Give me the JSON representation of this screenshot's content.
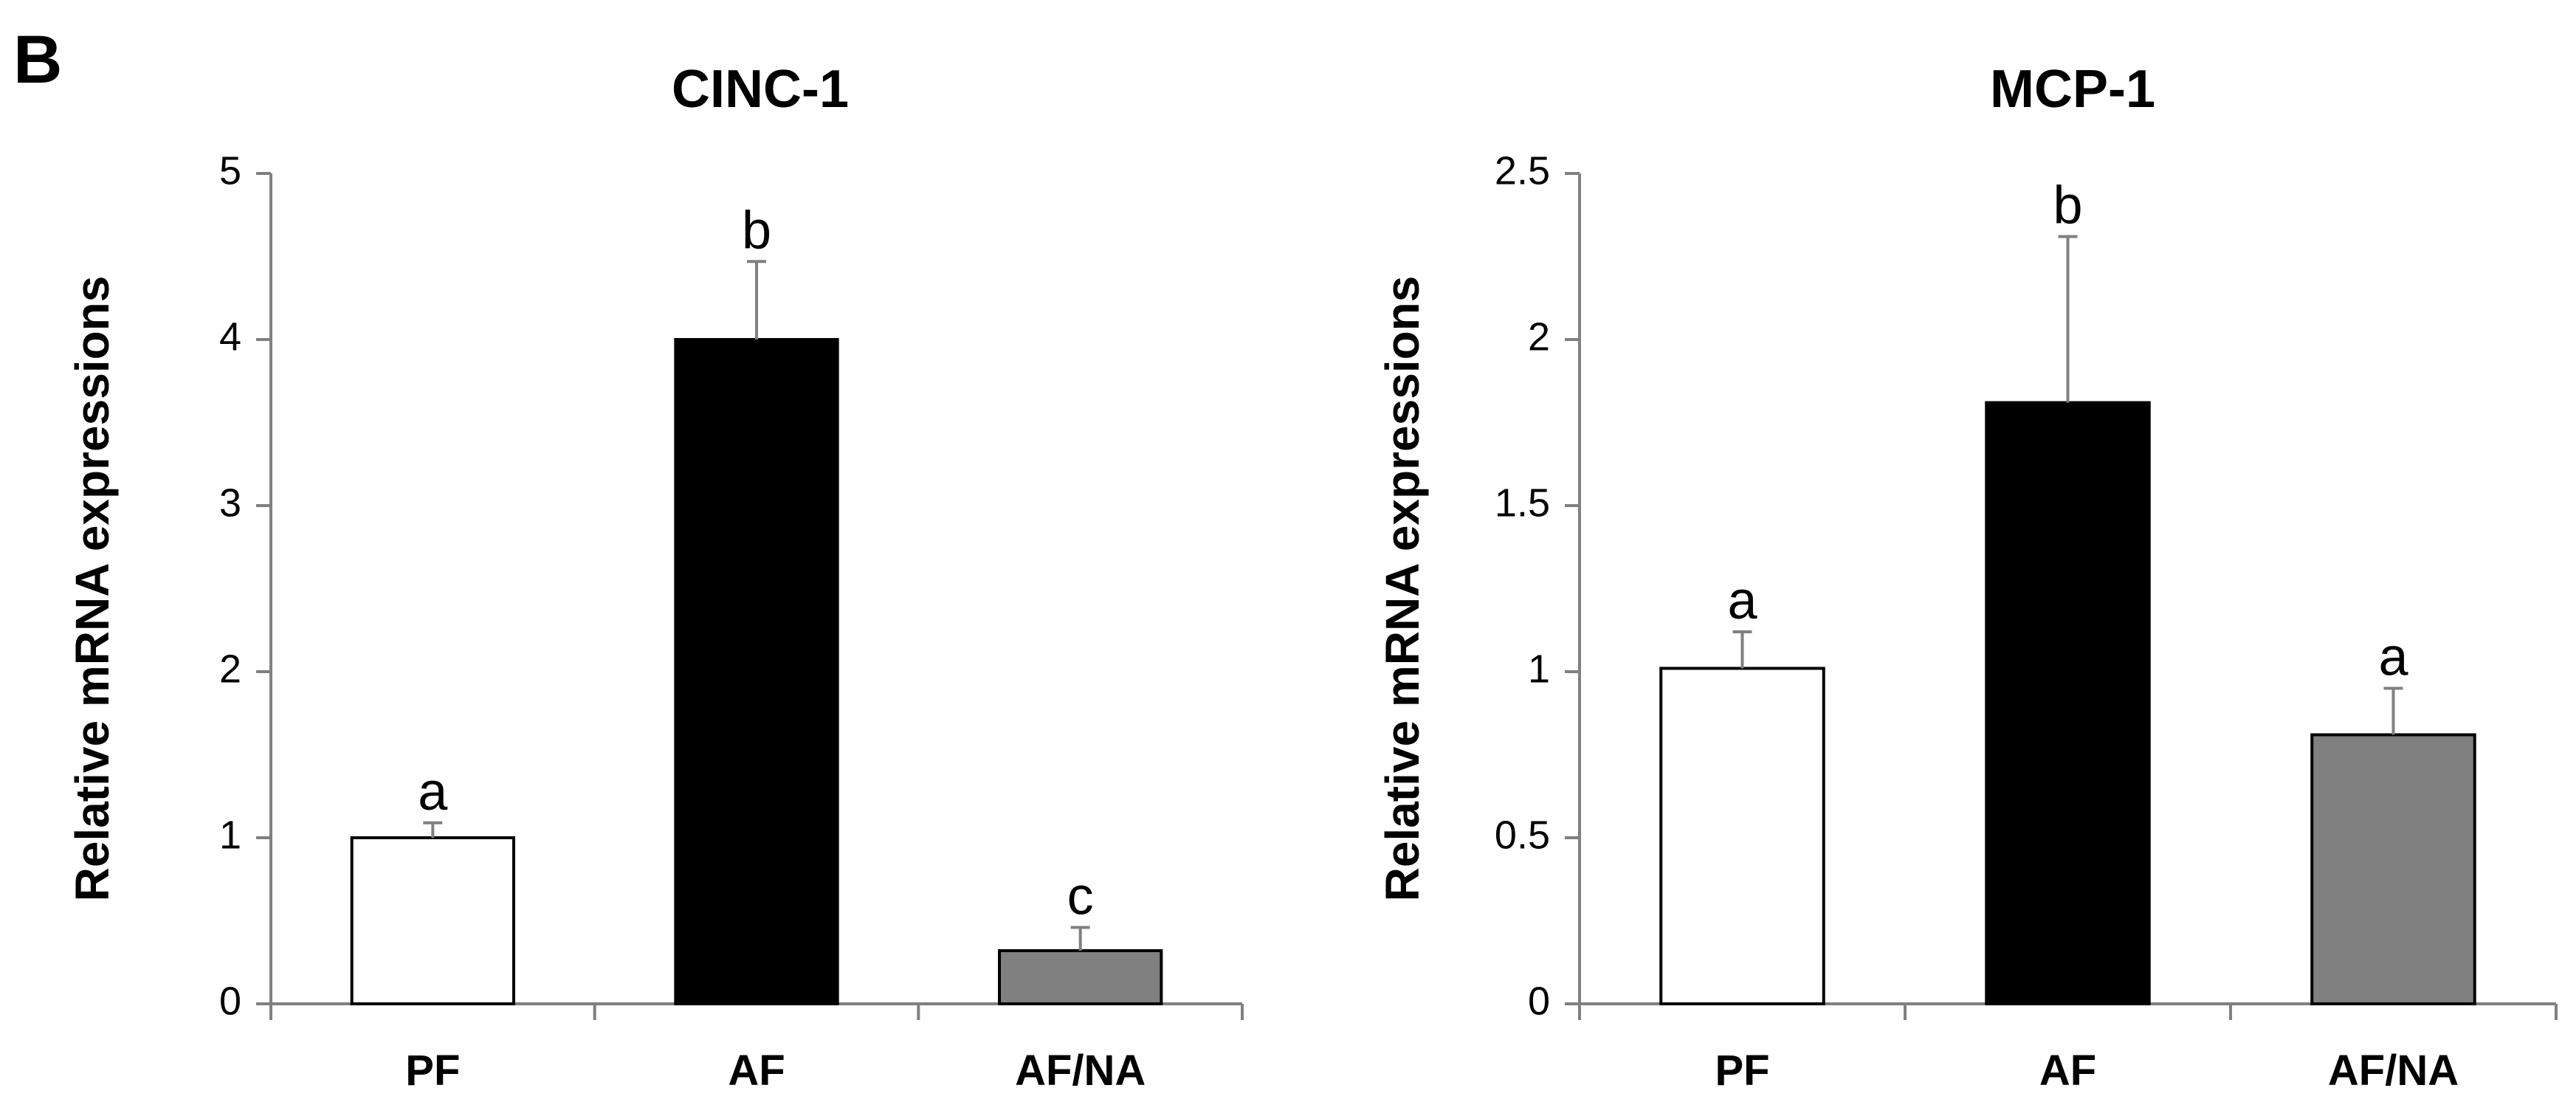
{
  "panel_label": "B",
  "chart_data": [
    {
      "type": "bar",
      "title": "CINC-1",
      "xlabel": "",
      "ylabel": "Relative mRNA expressions",
      "ylim": [
        0,
        5
      ],
      "yticks": [
        0,
        1,
        2,
        3,
        4,
        5
      ],
      "ytick_labels": [
        "0",
        "1",
        "2",
        "3",
        "4",
        "5"
      ],
      "categories": [
        "PF",
        "AF",
        "AF/NA"
      ],
      "values": [
        1.0,
        4.0,
        0.32
      ],
      "error_upper": [
        0.09,
        0.47,
        0.14
      ],
      "significance": [
        "a",
        "b",
        "c"
      ],
      "bar_colors": [
        "#ffffff",
        "#000000",
        "#808080"
      ],
      "grid": false,
      "legend": "none"
    },
    {
      "type": "bar",
      "title": "MCP-1",
      "xlabel": "",
      "ylabel": "Relative mRNA expressions",
      "ylim": [
        0,
        2.5
      ],
      "yticks": [
        0,
        0.5,
        1,
        1.5,
        2,
        2.5
      ],
      "ytick_labels": [
        "0",
        "0.5",
        "1",
        "1.5",
        "2",
        "2.5"
      ],
      "categories": [
        "PF",
        "AF",
        "AF/NA"
      ],
      "values": [
        1.01,
        1.81,
        0.81
      ],
      "error_upper": [
        0.11,
        0.5,
        0.14
      ],
      "significance": [
        "a",
        "b",
        "a"
      ],
      "bar_colors": [
        "#ffffff",
        "#000000",
        "#808080"
      ],
      "grid": false,
      "legend": "none"
    }
  ]
}
